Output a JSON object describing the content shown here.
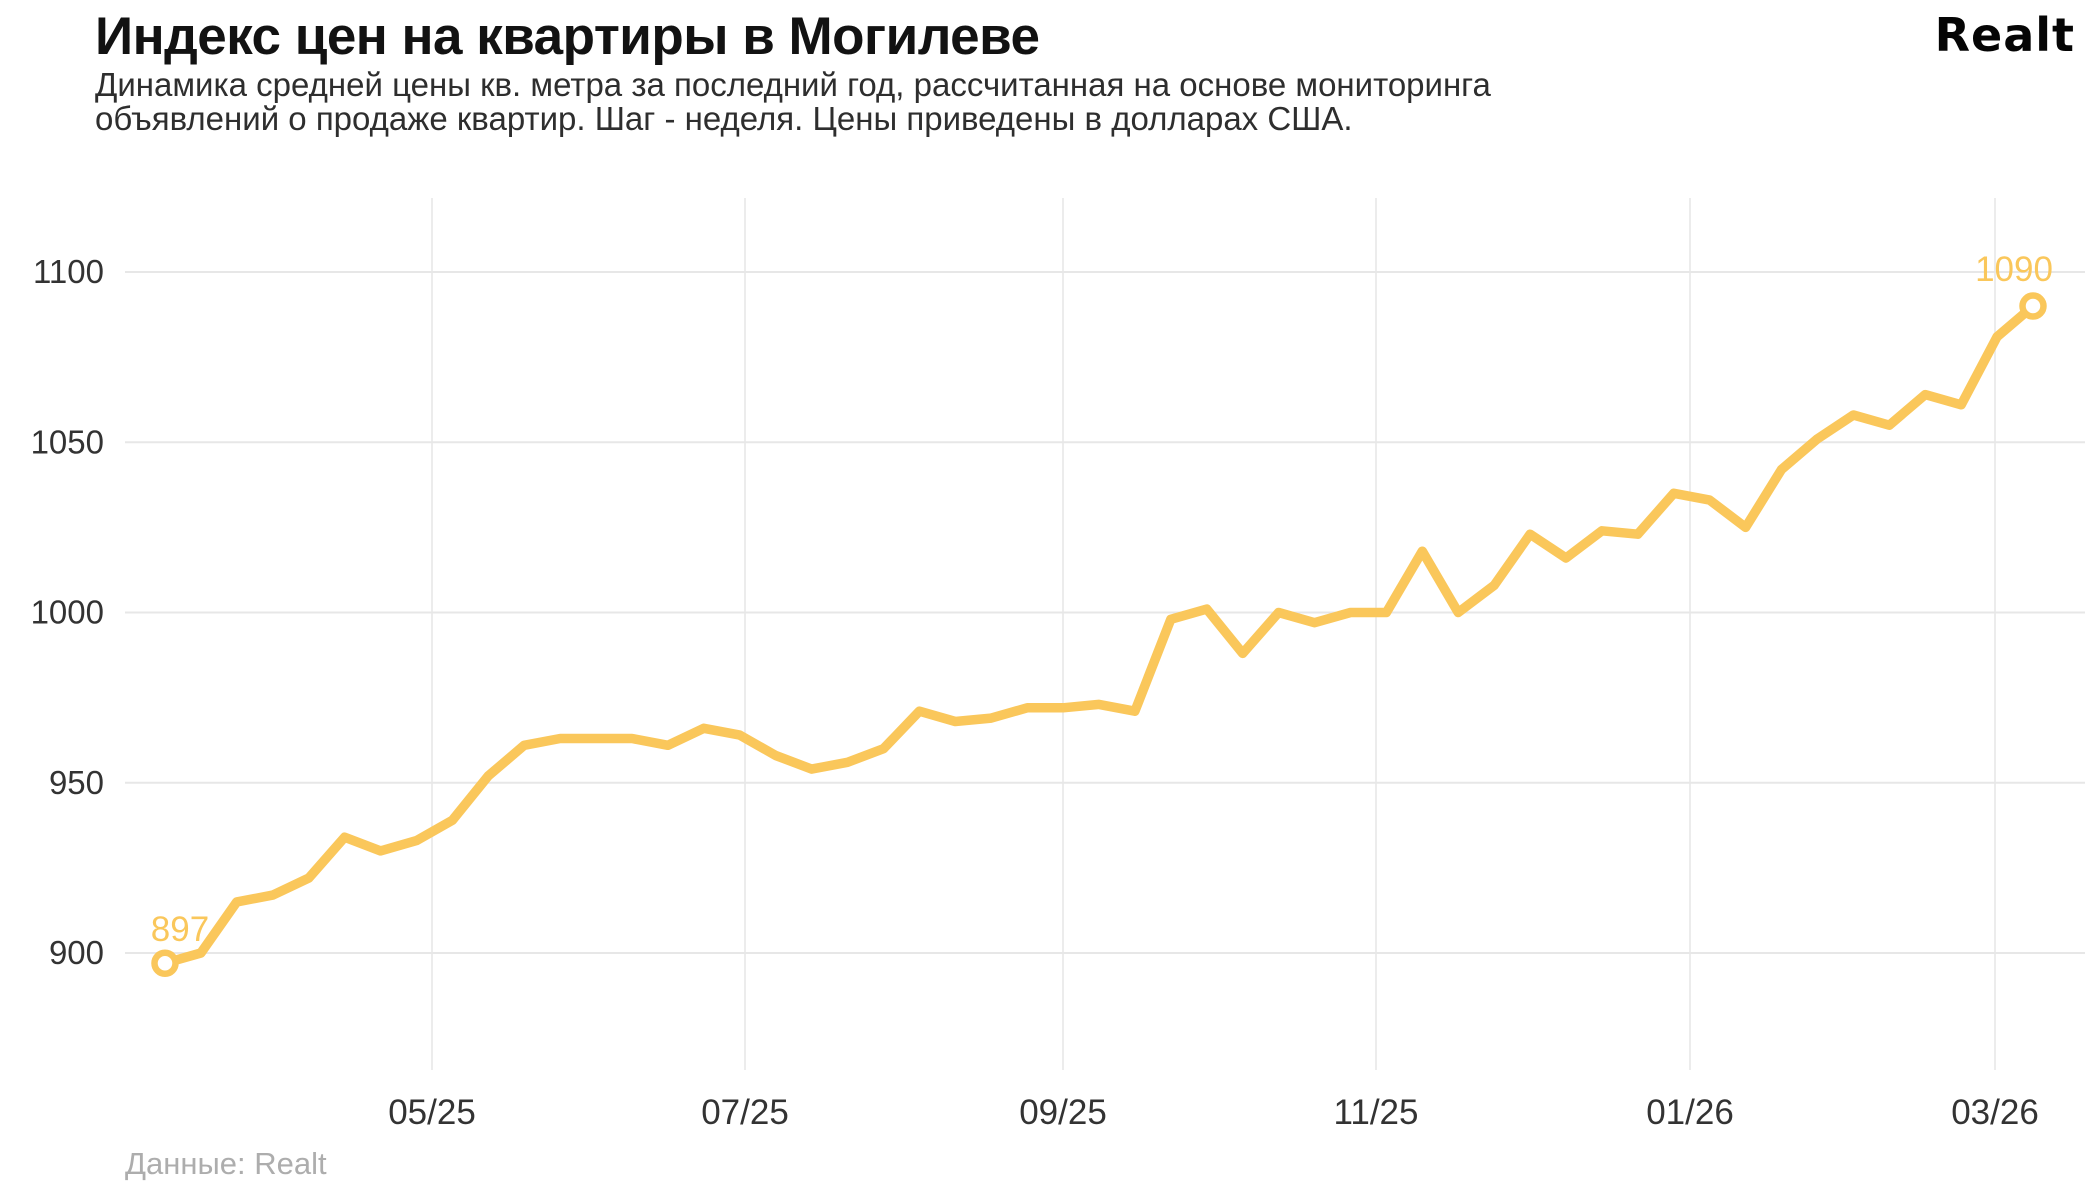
{
  "header": {
    "title": "Индекс цен на квартиры в Могилеве",
    "subtitle_line1": "Динамика средней цены кв. метра за последний год, рассчитанная на основе мониторинга",
    "subtitle_line2": "объявлений о продаже квартир. Шаг - неделя. Цены приведены в долларах США.",
    "logo": "Realt"
  },
  "footer": {
    "source": "Данные: Realt"
  },
  "colors": {
    "accent": "#FAC75B",
    "title_text": "#121212",
    "subtitle_text": "#2E2E2E",
    "axis_text": "#333333",
    "grid_horizontal": "#E7E7E7",
    "grid_vertical": "#ECECEC",
    "muted_text": "#ADADAD",
    "marker_fill": "#FFFFFF"
  },
  "chart_data": {
    "type": "line",
    "title": "Индекс цен на квартиры в Могилеве",
    "subtitle": "Динамика средней цены кв. метра за последний год, рассчитанная на основе мониторинга объявлений о продаже квартир. Шаг - неделя. Цены приведены в долларах США.",
    "source": "Данные: Realt",
    "step": "week",
    "currency": "USD",
    "grid": true,
    "legend": false,
    "x_tick_labels": [
      "05/25",
      "07/25",
      "09/25",
      "11/25",
      "01/26",
      "03/26"
    ],
    "y_ticks": [
      1100,
      1050,
      1000,
      950,
      900
    ],
    "ylim": [
      880,
      1115
    ],
    "values": [
      897,
      900,
      915,
      917,
      922,
      934,
      930,
      933,
      939,
      952,
      961,
      963,
      963,
      963,
      961,
      966,
      964,
      958,
      954,
      956,
      960,
      971,
      968,
      969,
      972,
      972,
      973,
      971,
      998,
      1001,
      988,
      1000,
      997,
      1000,
      1000,
      1018,
      1000,
      1008,
      1023,
      1016,
      1024,
      1023,
      1035,
      1033,
      1025,
      1042,
      1051,
      1058,
      1055,
      1064,
      1061,
      1081,
      1090
    ],
    "start_label": "897",
    "end_label": "1090"
  }
}
